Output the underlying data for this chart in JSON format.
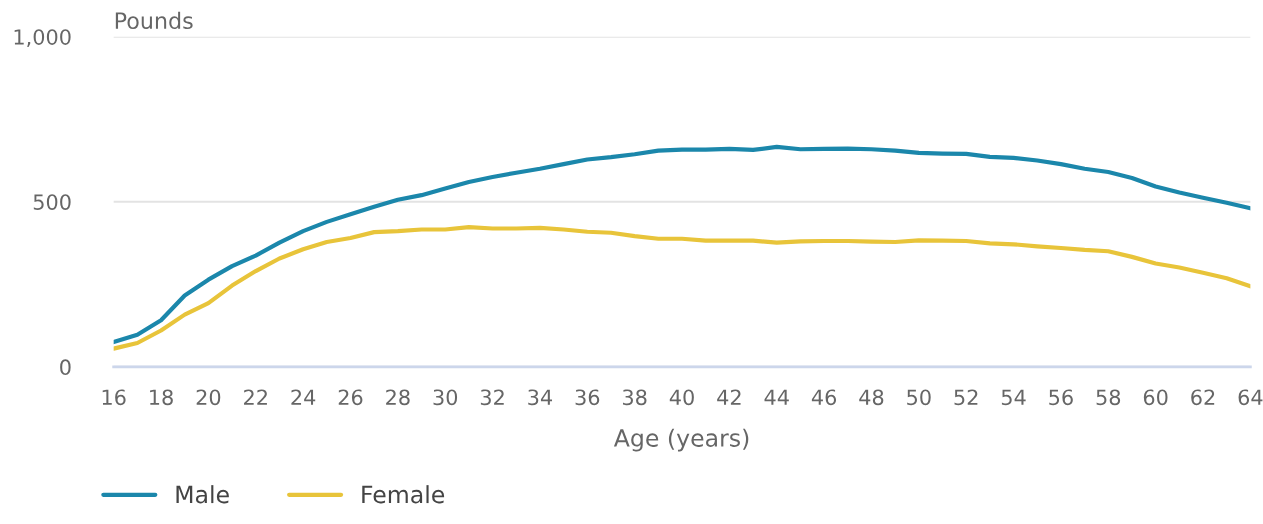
{
  "chart_data": {
    "type": "line",
    "ylabel": "Pounds",
    "xlabel": "Age (years)",
    "x": [
      16,
      17,
      18,
      19,
      20,
      21,
      22,
      23,
      24,
      25,
      26,
      27,
      28,
      29,
      30,
      31,
      32,
      33,
      34,
      35,
      36,
      37,
      38,
      39,
      40,
      41,
      42,
      43,
      44,
      45,
      46,
      47,
      48,
      49,
      50,
      51,
      52,
      53,
      54,
      55,
      56,
      57,
      58,
      59,
      60,
      61,
      62,
      63,
      64
    ],
    "series": [
      {
        "name": "Male",
        "color": "#1b87ab",
        "values": [
          75,
          97,
          141,
          216,
          264,
          305,
          337,
          376,
          411,
          439,
          462,
          485,
          506,
          520,
          540,
          560,
          575,
          588,
          600,
          614,
          628,
          635,
          644,
          655,
          658,
          658,
          660,
          657,
          666,
          659,
          660,
          661,
          659,
          655,
          648,
          646,
          645,
          636,
          633,
          625,
          614,
          600,
          590,
          572,
          546,
          528,
          512,
          497,
          480
        ]
      },
      {
        "name": "Female",
        "color": "#e8c43a",
        "values": [
          55,
          72,
          110,
          158,
          193,
          246,
          290,
          328,
          356,
          378,
          390,
          408,
          411,
          416,
          416,
          423,
          419,
          419,
          421,
          416,
          409,
          406,
          396,
          388,
          388,
          382,
          382,
          382,
          376,
          380,
          381,
          381,
          379,
          378,
          383,
          382,
          381,
          374,
          371,
          365,
          360,
          354,
          350,
          333,
          313,
          301,
          285,
          268,
          244
        ]
      }
    ],
    "xlim": [
      16,
      64
    ],
    "xticks": [
      16,
      18,
      20,
      22,
      24,
      26,
      28,
      30,
      32,
      34,
      36,
      38,
      40,
      42,
      44,
      46,
      48,
      50,
      52,
      54,
      56,
      58,
      60,
      62,
      64
    ],
    "ylim": [
      0,
      1000
    ],
    "yticks": [
      0,
      500,
      {
        "value": 1000,
        "label": "1,000"
      }
    ],
    "grid": "y",
    "legend": "bottom left",
    "marker": "none",
    "line_style": "solid"
  }
}
